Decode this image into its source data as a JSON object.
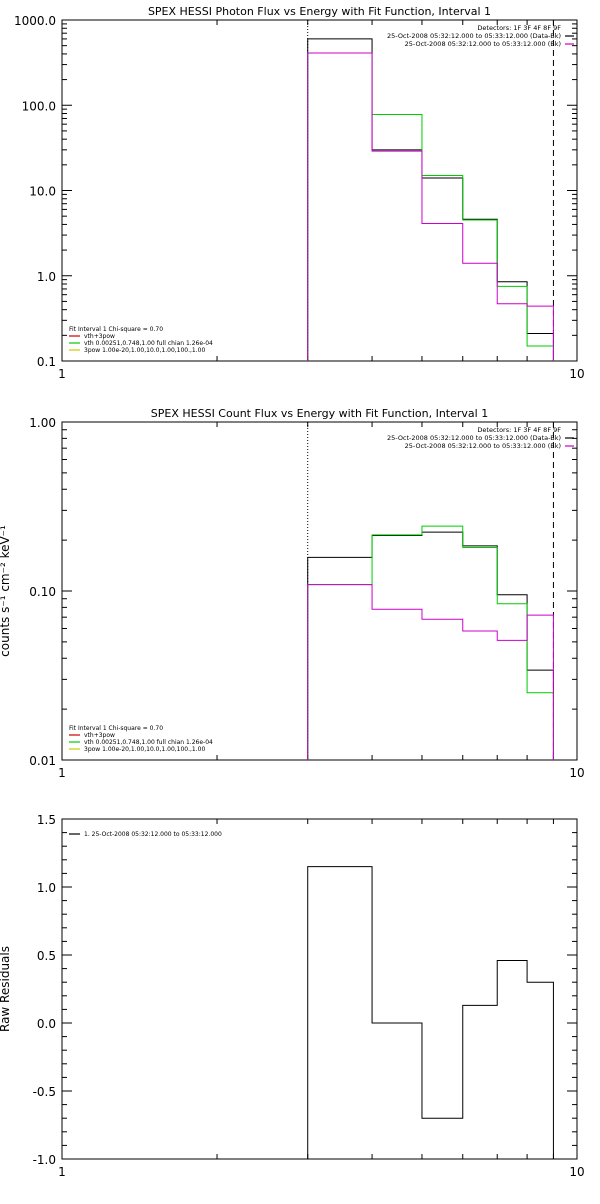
{
  "chart_data": [
    {
      "type": "line",
      "title": "SPEX HESSI Photon Flux vs Energy with Fit Function, Interval 1",
      "xlabel": "",
      "ylabel": "",
      "xscale": "log",
      "yscale": "log",
      "xlim": [
        1,
        10
      ],
      "ylim": [
        0.1,
        1000
      ],
      "xticks": [
        {
          "v": 1,
          "label": "1"
        },
        {
          "v": 10,
          "label": "10"
        }
      ],
      "yticks": [
        {
          "v": 0.1,
          "label": "0.1"
        },
        {
          "v": 1,
          "label": "1.0"
        },
        {
          "v": 10,
          "label": "10.0"
        },
        {
          "v": 100,
          "label": "100.0"
        },
        {
          "v": 1000,
          "label": "1000.0"
        }
      ],
      "info_lines": [
        "Detectors: 1F 3F 4F 8F 9F",
        "25-Oct-2008 05:32:12.000 to 05:33:12.000 (Data-Bk)",
        "25-Oct-2008 05:32:12.000 to 05:33:12.000 (Bk)"
      ],
      "info_colors": [
        "",
        "#000000",
        "#cc00cc"
      ],
      "legend_lines": [
        "Fit Interval 1    Chi-square = 0.70",
        "vth+3pow",
        "vth 0.00251,0.748,1.00   full chian 1.26e-04",
        "3pow 1.00e-20,1.00,10.0,1.00,100.,1.00"
      ],
      "legend_colors": [
        "",
        "#cc0000",
        "#00cc00",
        "#cccc00"
      ],
      "edges": [
        3,
        4,
        5,
        6,
        7,
        8,
        9
      ],
      "series": [
        {
          "color": "#000000",
          "values": [
            600,
            30,
            14,
            4.6,
            0.85,
            0.21
          ]
        },
        {
          "color": "#00cc00",
          "values": [
            410,
            78,
            15,
            4.5,
            0.75,
            0.15
          ]
        },
        {
          "color": "#cc00cc",
          "values": [
            410,
            29,
            4.1,
            1.4,
            0.47,
            0.44
          ]
        }
      ],
      "vlines": [
        {
          "x": 3,
          "style": "dotted"
        },
        {
          "x": 9,
          "style": "dashed"
        }
      ]
    },
    {
      "type": "line",
      "title": "SPEX HESSI Count Flux vs Energy with Fit Function, Interval 1",
      "xlabel": "",
      "ylabel": "counts s⁻¹ cm⁻² keV⁻¹",
      "xscale": "log",
      "yscale": "log",
      "xlim": [
        1,
        10
      ],
      "ylim": [
        0.01,
        1
      ],
      "xticks": [
        {
          "v": 1,
          "label": "1"
        },
        {
          "v": 10,
          "label": "10"
        }
      ],
      "yticks": [
        {
          "v": 0.01,
          "label": "0.01"
        },
        {
          "v": 0.1,
          "label": "0.10"
        },
        {
          "v": 1,
          "label": "1.00"
        }
      ],
      "info_lines": [
        "Detectors: 1F 3F 4F 8F 9F",
        "25-Oct-2008 05:32:12.000 to 05:33:12.000 (Data-Bk)",
        "25-Oct-2008 05:32:12.000 to 05:33:12.000 (Bk)"
      ],
      "info_colors": [
        "",
        "#000000",
        "#cc00cc"
      ],
      "legend_lines": [
        "Fit Interval 1    Chi-square = 0.70",
        "vth+3pow",
        "vth 0.00251,0.748,1.00   full chian 1.26e-04",
        "3pow 1.00e-20,1.00,10.0,1.00,100.,1.00"
      ],
      "legend_colors": [
        "",
        "#cc0000",
        "#00cc00",
        "#cccc00"
      ],
      "edges": [
        3,
        4,
        5,
        6,
        7,
        8,
        9
      ],
      "series": [
        {
          "color": "#000000",
          "values": [
            0.158,
            0.213,
            0.223,
            0.185,
            0.095,
            0.034
          ]
        },
        {
          "color": "#00cc00",
          "values": [
            0.109,
            0.215,
            0.242,
            0.181,
            0.084,
            0.025
          ]
        },
        {
          "color": "#cc00cc",
          "values": [
            0.109,
            0.078,
            0.068,
            0.058,
            0.051,
            0.072
          ]
        }
      ],
      "vlines": [
        {
          "x": 3,
          "style": "dotted"
        },
        {
          "x": 9,
          "style": "dashed"
        }
      ]
    },
    {
      "type": "line",
      "title": "",
      "xlabel": "",
      "ylabel": "Raw Residuals",
      "xscale": "log",
      "yscale": "linear",
      "xlim": [
        1,
        10
      ],
      "ylim": [
        -1,
        1.5
      ],
      "xticks": [
        {
          "v": 1,
          "label": "1"
        },
        {
          "v": 10,
          "label": "10"
        }
      ],
      "yticks": [
        {
          "v": -1,
          "label": "-1.0"
        },
        {
          "v": -0.5,
          "label": "-0.5"
        },
        {
          "v": 0,
          "label": "0.0"
        },
        {
          "v": 0.5,
          "label": "0.5"
        },
        {
          "v": 1,
          "label": "1.0"
        },
        {
          "v": 1.5,
          "label": "1.5"
        }
      ],
      "info_lines": [],
      "info_colors": [],
      "legend_lines": [
        "1. 25-Oct-2008 05:32:12.000 to 05:33:12.000"
      ],
      "legend_colors": [
        "#000000"
      ],
      "edges": [
        3,
        4,
        5,
        6,
        7,
        8,
        9
      ],
      "series": [
        {
          "color": "#000000",
          "values": [
            1.15,
            0.0,
            -0.7,
            0.13,
            0.46,
            0.3
          ]
        }
      ],
      "vlines": []
    }
  ]
}
